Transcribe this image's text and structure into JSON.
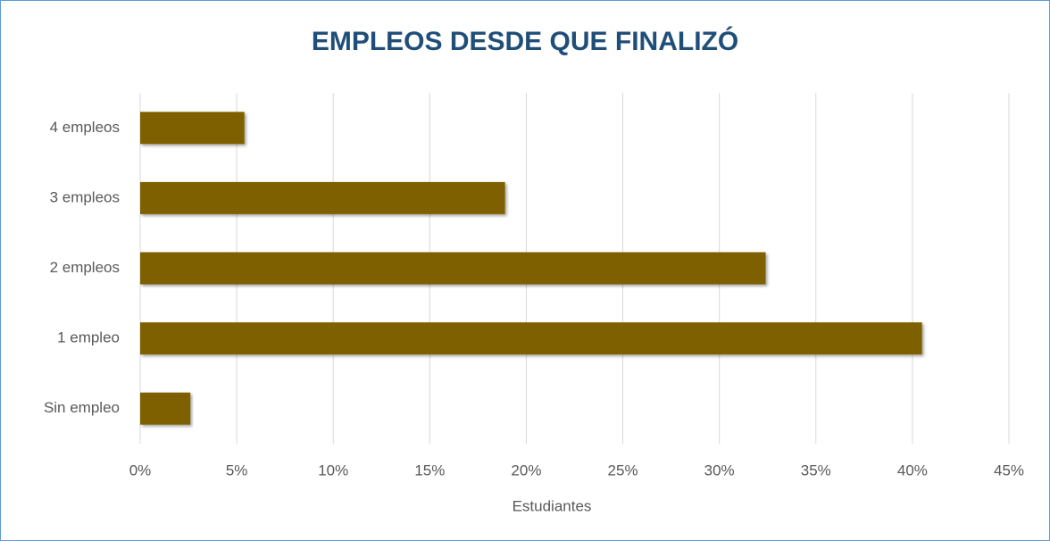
{
  "chart_data": {
    "type": "bar",
    "orientation": "horizontal",
    "title": "EMPLEOS DESDE QUE FINALIZÓ",
    "x_label": "Estudiantes",
    "categories": [
      "Sin empleo",
      "1 empleo",
      "2 empleos",
      "3 empleos",
      "4 empleos"
    ],
    "values": [
      2.6,
      40.5,
      32.4,
      18.9,
      5.4
    ],
    "color": "#7f6000",
    "xlim": [
      0,
      45
    ],
    "xticks": [
      {
        "value": 0,
        "label": "0%"
      },
      {
        "value": 5,
        "label": "5%"
      },
      {
        "value": 10,
        "label": "10%"
      },
      {
        "value": 15,
        "label": "15%"
      },
      {
        "value": 20,
        "label": "20%"
      },
      {
        "value": 25,
        "label": "25%"
      },
      {
        "value": 30,
        "label": "30%"
      },
      {
        "value": 35,
        "label": "35%"
      },
      {
        "value": 40,
        "label": "40%"
      },
      {
        "value": 45,
        "label": "45%"
      }
    ],
    "grid": true
  }
}
